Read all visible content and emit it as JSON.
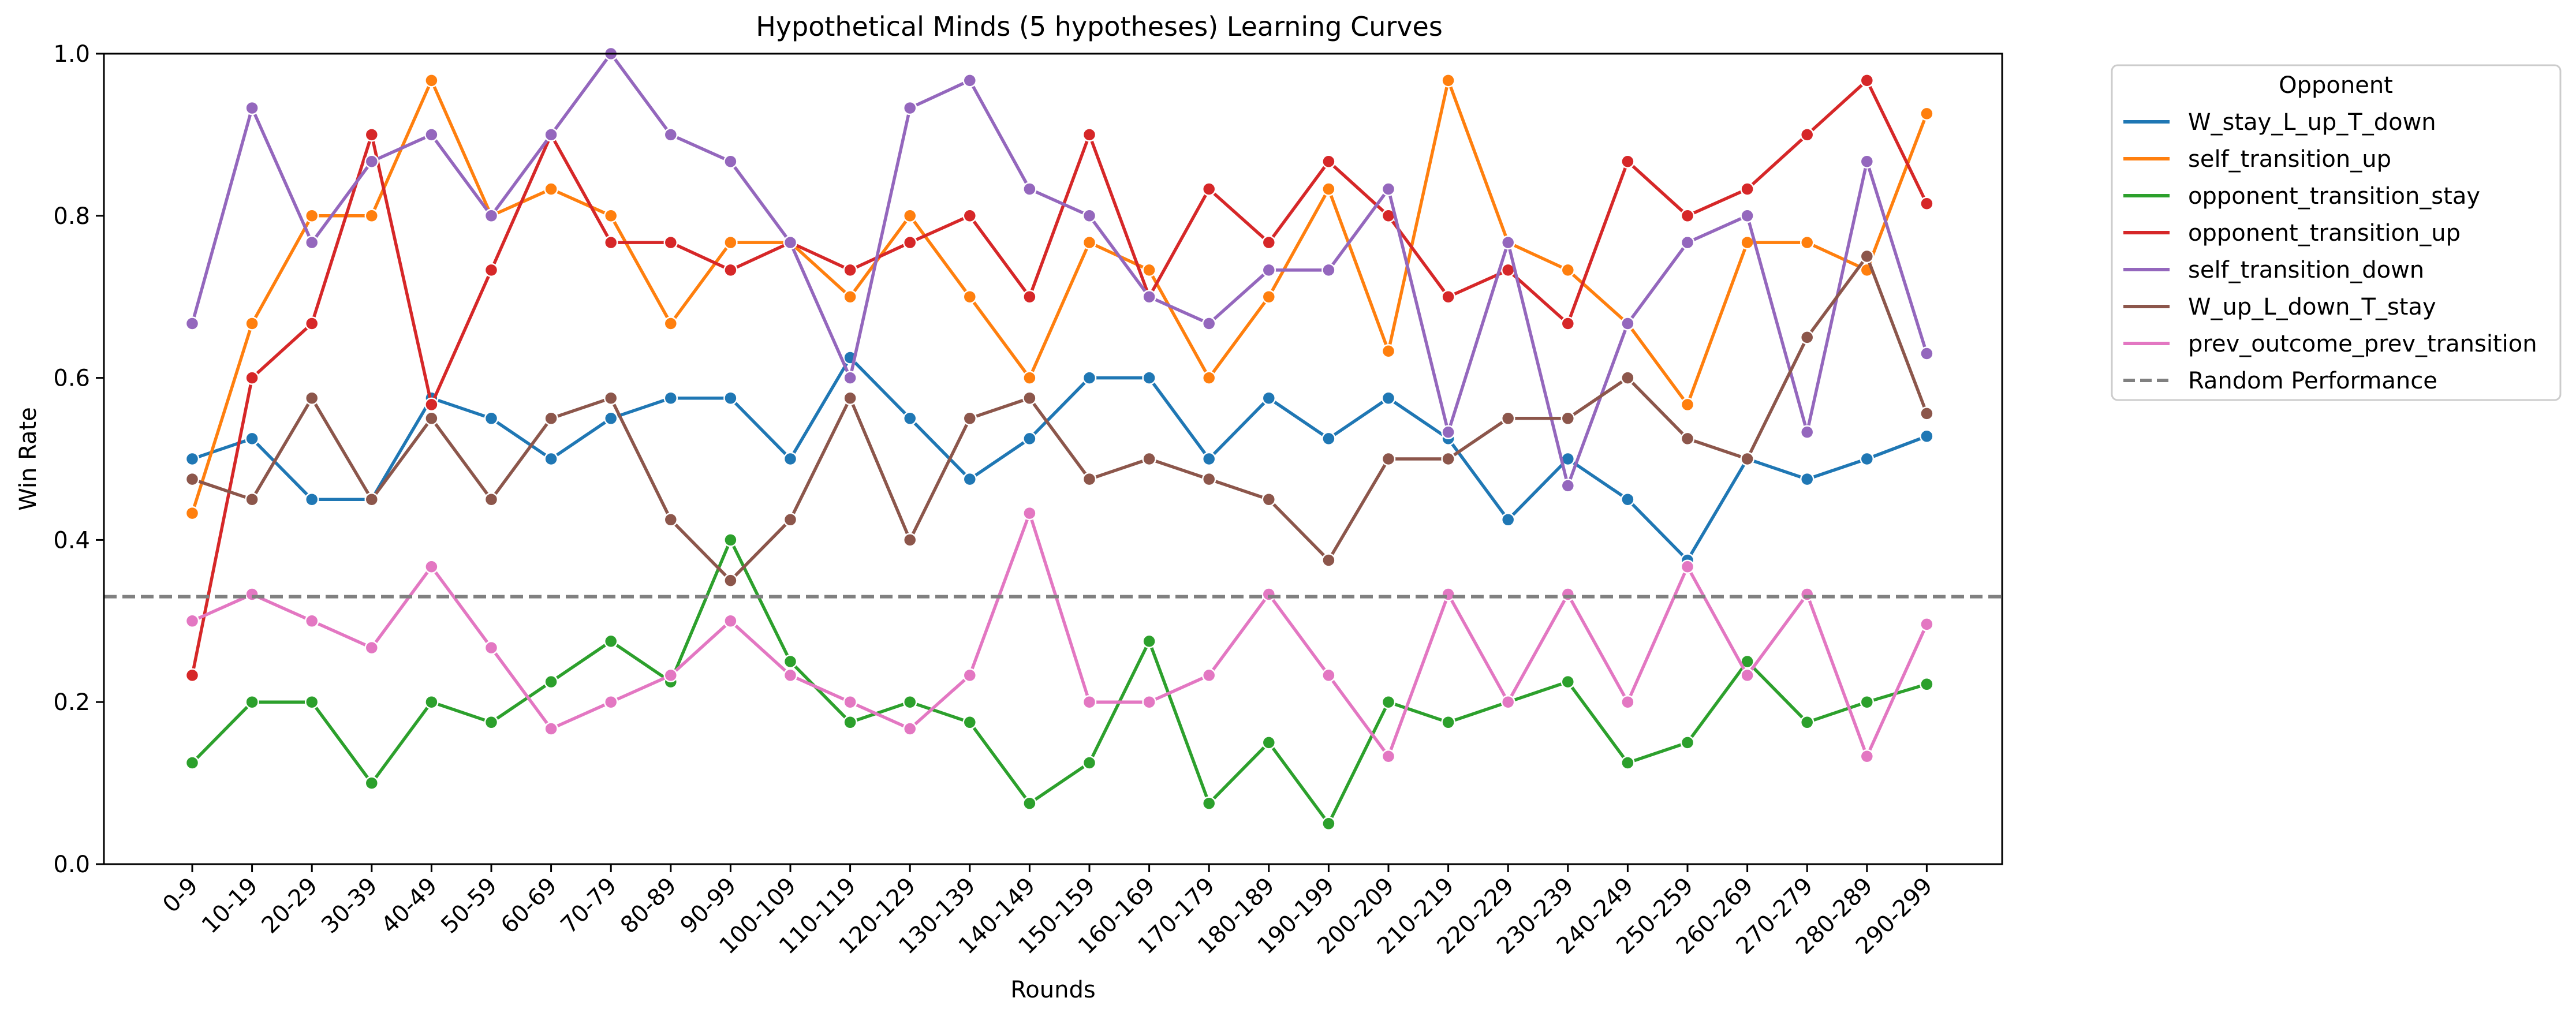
{
  "chart_data": {
    "type": "line",
    "title": "Hypothetical Minds (5 hypotheses) Learning Curves",
    "xlabel": "Rounds",
    "ylabel": "Win Rate",
    "ylim": [
      0.0,
      1.0
    ],
    "yticks": [
      "0.0",
      "0.2",
      "0.4",
      "0.6",
      "0.8",
      "1.0"
    ],
    "grid": false,
    "legend_title": "Opponent",
    "legend_position": "outside-top-right",
    "categories": [
      "0-9",
      "10-19",
      "20-29",
      "30-39",
      "40-49",
      "50-59",
      "60-69",
      "70-79",
      "80-89",
      "90-99",
      "100-109",
      "110-119",
      "120-129",
      "130-139",
      "140-149",
      "150-159",
      "160-169",
      "170-179",
      "180-189",
      "190-199",
      "200-209",
      "210-219",
      "220-229",
      "230-239",
      "240-249",
      "250-259",
      "260-269",
      "270-279",
      "280-289",
      "290-299"
    ],
    "series": [
      {
        "name": "W_stay_L_up_T_down",
        "color": "#1f77b4",
        "values": [
          0.5,
          0.525,
          0.45,
          0.45,
          0.575,
          0.55,
          0.5,
          0.55,
          0.575,
          0.575,
          0.5,
          0.625,
          0.55,
          0.475,
          0.525,
          0.6,
          0.6,
          0.5,
          0.575,
          0.525,
          0.575,
          0.525,
          0.425,
          0.5,
          0.45,
          0.375,
          0.5,
          0.475,
          0.5,
          0.528
        ]
      },
      {
        "name": "self_transition_up",
        "color": "#ff7f0e",
        "values": [
          0.433,
          0.667,
          0.8,
          0.8,
          0.967,
          0.8,
          0.833,
          0.8,
          0.667,
          0.767,
          0.767,
          0.7,
          0.8,
          0.7,
          0.6,
          0.767,
          0.733,
          0.6,
          0.7,
          0.833,
          0.633,
          0.967,
          0.767,
          0.733,
          0.667,
          0.567,
          0.767,
          0.767,
          0.733,
          0.926
        ]
      },
      {
        "name": "opponent_transition_stay",
        "color": "#2ca02c",
        "values": [
          0.125,
          0.2,
          0.2,
          0.1,
          0.2,
          0.175,
          0.225,
          0.275,
          0.225,
          0.4,
          0.25,
          0.175,
          0.2,
          0.175,
          0.075,
          0.125,
          0.275,
          0.075,
          0.15,
          0.05,
          0.2,
          0.175,
          0.2,
          0.225,
          0.125,
          0.15,
          0.25,
          0.175,
          0.2,
          0.222
        ]
      },
      {
        "name": "opponent_transition_up",
        "color": "#d62728",
        "values": [
          0.233,
          0.6,
          0.667,
          0.9,
          0.567,
          0.733,
          0.9,
          0.767,
          0.767,
          0.733,
          0.767,
          0.733,
          0.767,
          0.8,
          0.7,
          0.9,
          0.7,
          0.833,
          0.767,
          0.867,
          0.8,
          0.7,
          0.733,
          0.667,
          0.867,
          0.8,
          0.833,
          0.9,
          0.967,
          0.815
        ]
      },
      {
        "name": "self_transition_down",
        "color": "#9467bd",
        "values": [
          0.667,
          0.933,
          0.767,
          0.867,
          0.9,
          0.8,
          0.9,
          1.0,
          0.9,
          0.867,
          0.767,
          0.6,
          0.933,
          0.967,
          0.833,
          0.8,
          0.7,
          0.667,
          0.733,
          0.733,
          0.833,
          0.533,
          0.767,
          0.467,
          0.667,
          0.767,
          0.8,
          0.533,
          0.867,
          0.63
        ]
      },
      {
        "name": "W_up_L_down_T_stay",
        "color": "#8c564b",
        "values": [
          0.475,
          0.45,
          0.575,
          0.45,
          0.55,
          0.45,
          0.55,
          0.575,
          0.425,
          0.35,
          0.425,
          0.575,
          0.4,
          0.55,
          0.575,
          0.475,
          0.5,
          0.475,
          0.45,
          0.375,
          0.5,
          0.5,
          0.55,
          0.55,
          0.6,
          0.525,
          0.5,
          0.65,
          0.75,
          0.556
        ]
      },
      {
        "name": "prev_outcome_prev_transition",
        "color": "#e377c2",
        "values": [
          0.3,
          0.333,
          0.3,
          0.267,
          0.367,
          0.267,
          0.167,
          0.2,
          0.233,
          0.3,
          0.233,
          0.2,
          0.167,
          0.233,
          0.433,
          0.2,
          0.2,
          0.233,
          0.333,
          0.233,
          0.133,
          0.333,
          0.2,
          0.333,
          0.2,
          0.367,
          0.233,
          0.333,
          0.133,
          0.296
        ]
      }
    ],
    "reference_line": {
      "name": "Random Performance",
      "value": 0.33,
      "color": "#808080",
      "style": "dashed"
    }
  }
}
